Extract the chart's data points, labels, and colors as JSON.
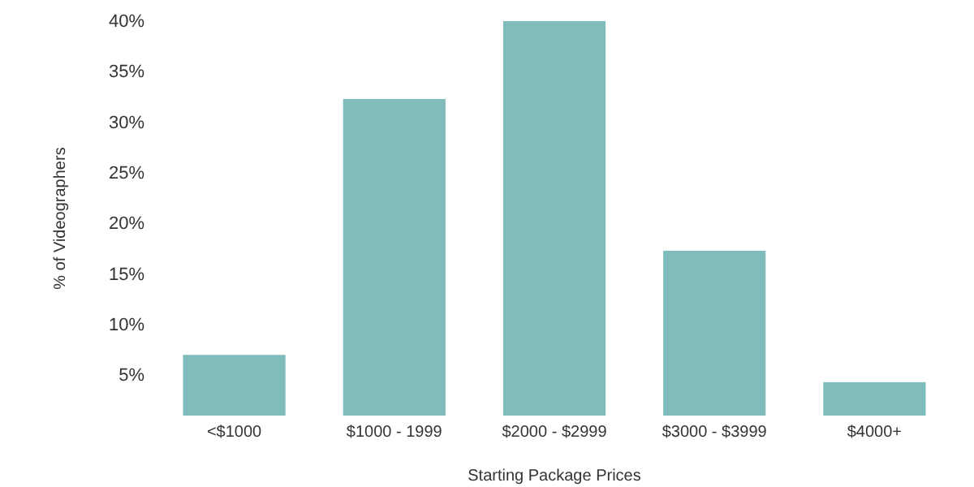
{
  "chart_data": {
    "type": "bar",
    "xlabel": "Starting Package Prices",
    "ylabel": "% of Videographers",
    "categories": [
      "<$1000",
      "$1000 - 1999",
      "$2000 - $2999",
      "$3000 - $3999",
      "$4000+"
    ],
    "values": [
      7,
      32.3,
      40,
      17.3,
      4.3
    ],
    "color": "#7fbcbb",
    "ylim": [
      1,
      40
    ],
    "yticks": [
      {
        "value": 5,
        "label": "5%"
      },
      {
        "value": 10,
        "label": "10%"
      },
      {
        "value": 15,
        "label": "15%"
      },
      {
        "value": 20,
        "label": "20%"
      },
      {
        "value": 25,
        "label": "25%"
      },
      {
        "value": 30,
        "label": "30%"
      },
      {
        "value": 35,
        "label": "35%"
      },
      {
        "value": 40,
        "label": "40%"
      }
    ],
    "grid": false
  }
}
